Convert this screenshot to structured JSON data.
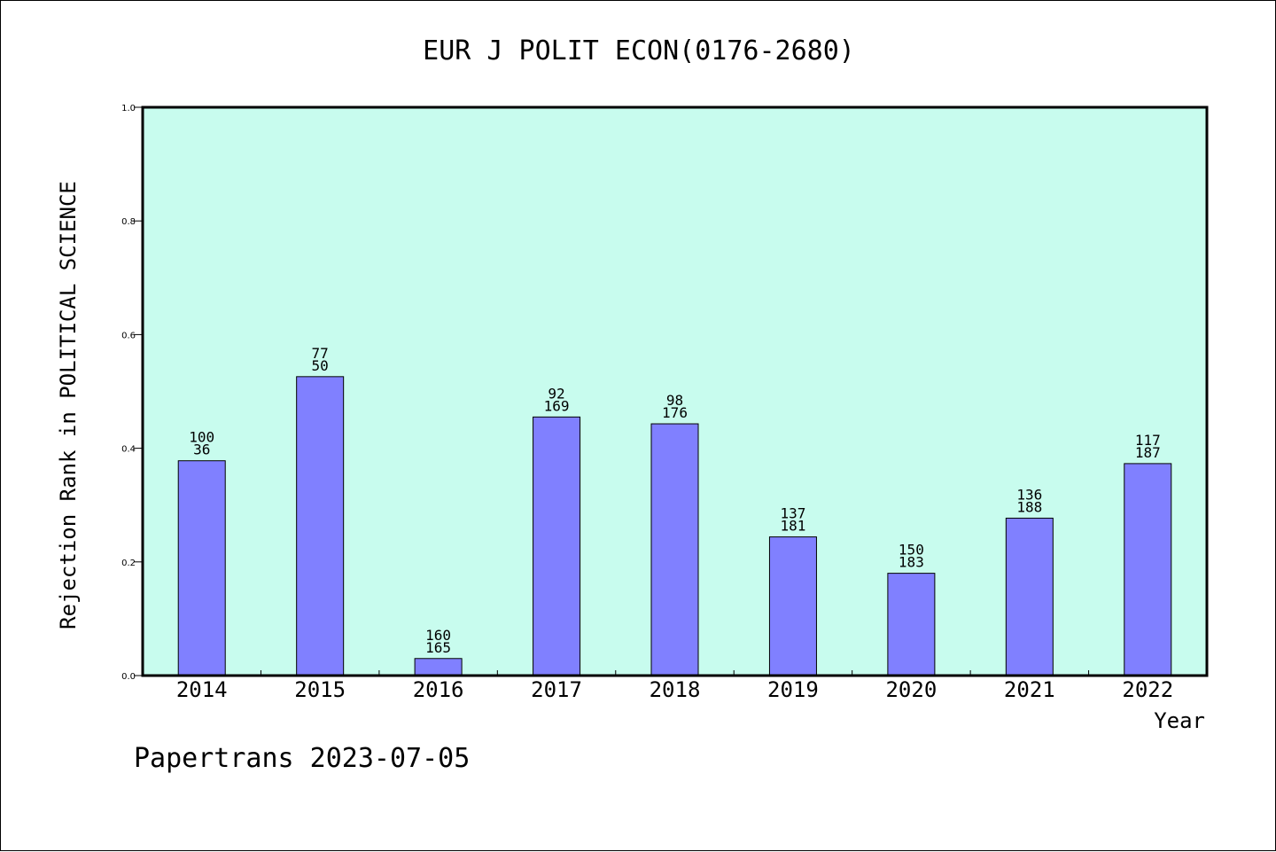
{
  "chart_data": {
    "type": "bar",
    "title": "EUR J POLIT ECON(0176-2680)",
    "xlabel": "Year",
    "ylabel": "Rejection Rank in POLITICAL SCIENCE",
    "ylim": [
      0,
      1.0
    ],
    "yticks": [
      "0.0",
      "0.2",
      "0.4",
      "0.6",
      "0.8",
      "1.0"
    ],
    "categories": [
      "2014",
      "2015",
      "2016",
      "2017",
      "2018",
      "2019",
      "2020",
      "2021",
      "2022"
    ],
    "values": [
      0.378,
      0.526,
      0.03,
      0.455,
      0.443,
      0.244,
      0.18,
      0.277,
      0.373
    ],
    "labels_top": [
      "100",
      "77",
      "160",
      "92",
      "98",
      "137",
      "150",
      "136",
      "117"
    ],
    "labels_bottom": [
      "36",
      "50",
      "165",
      "169",
      "176",
      "181",
      "183",
      "188",
      "187"
    ],
    "grid": false,
    "colors": {
      "plot_background": "#c8fcee",
      "bar_fill": "#8080ff",
      "bar_stroke": "#000000"
    }
  },
  "footer": "Papertrans 2023-07-05"
}
